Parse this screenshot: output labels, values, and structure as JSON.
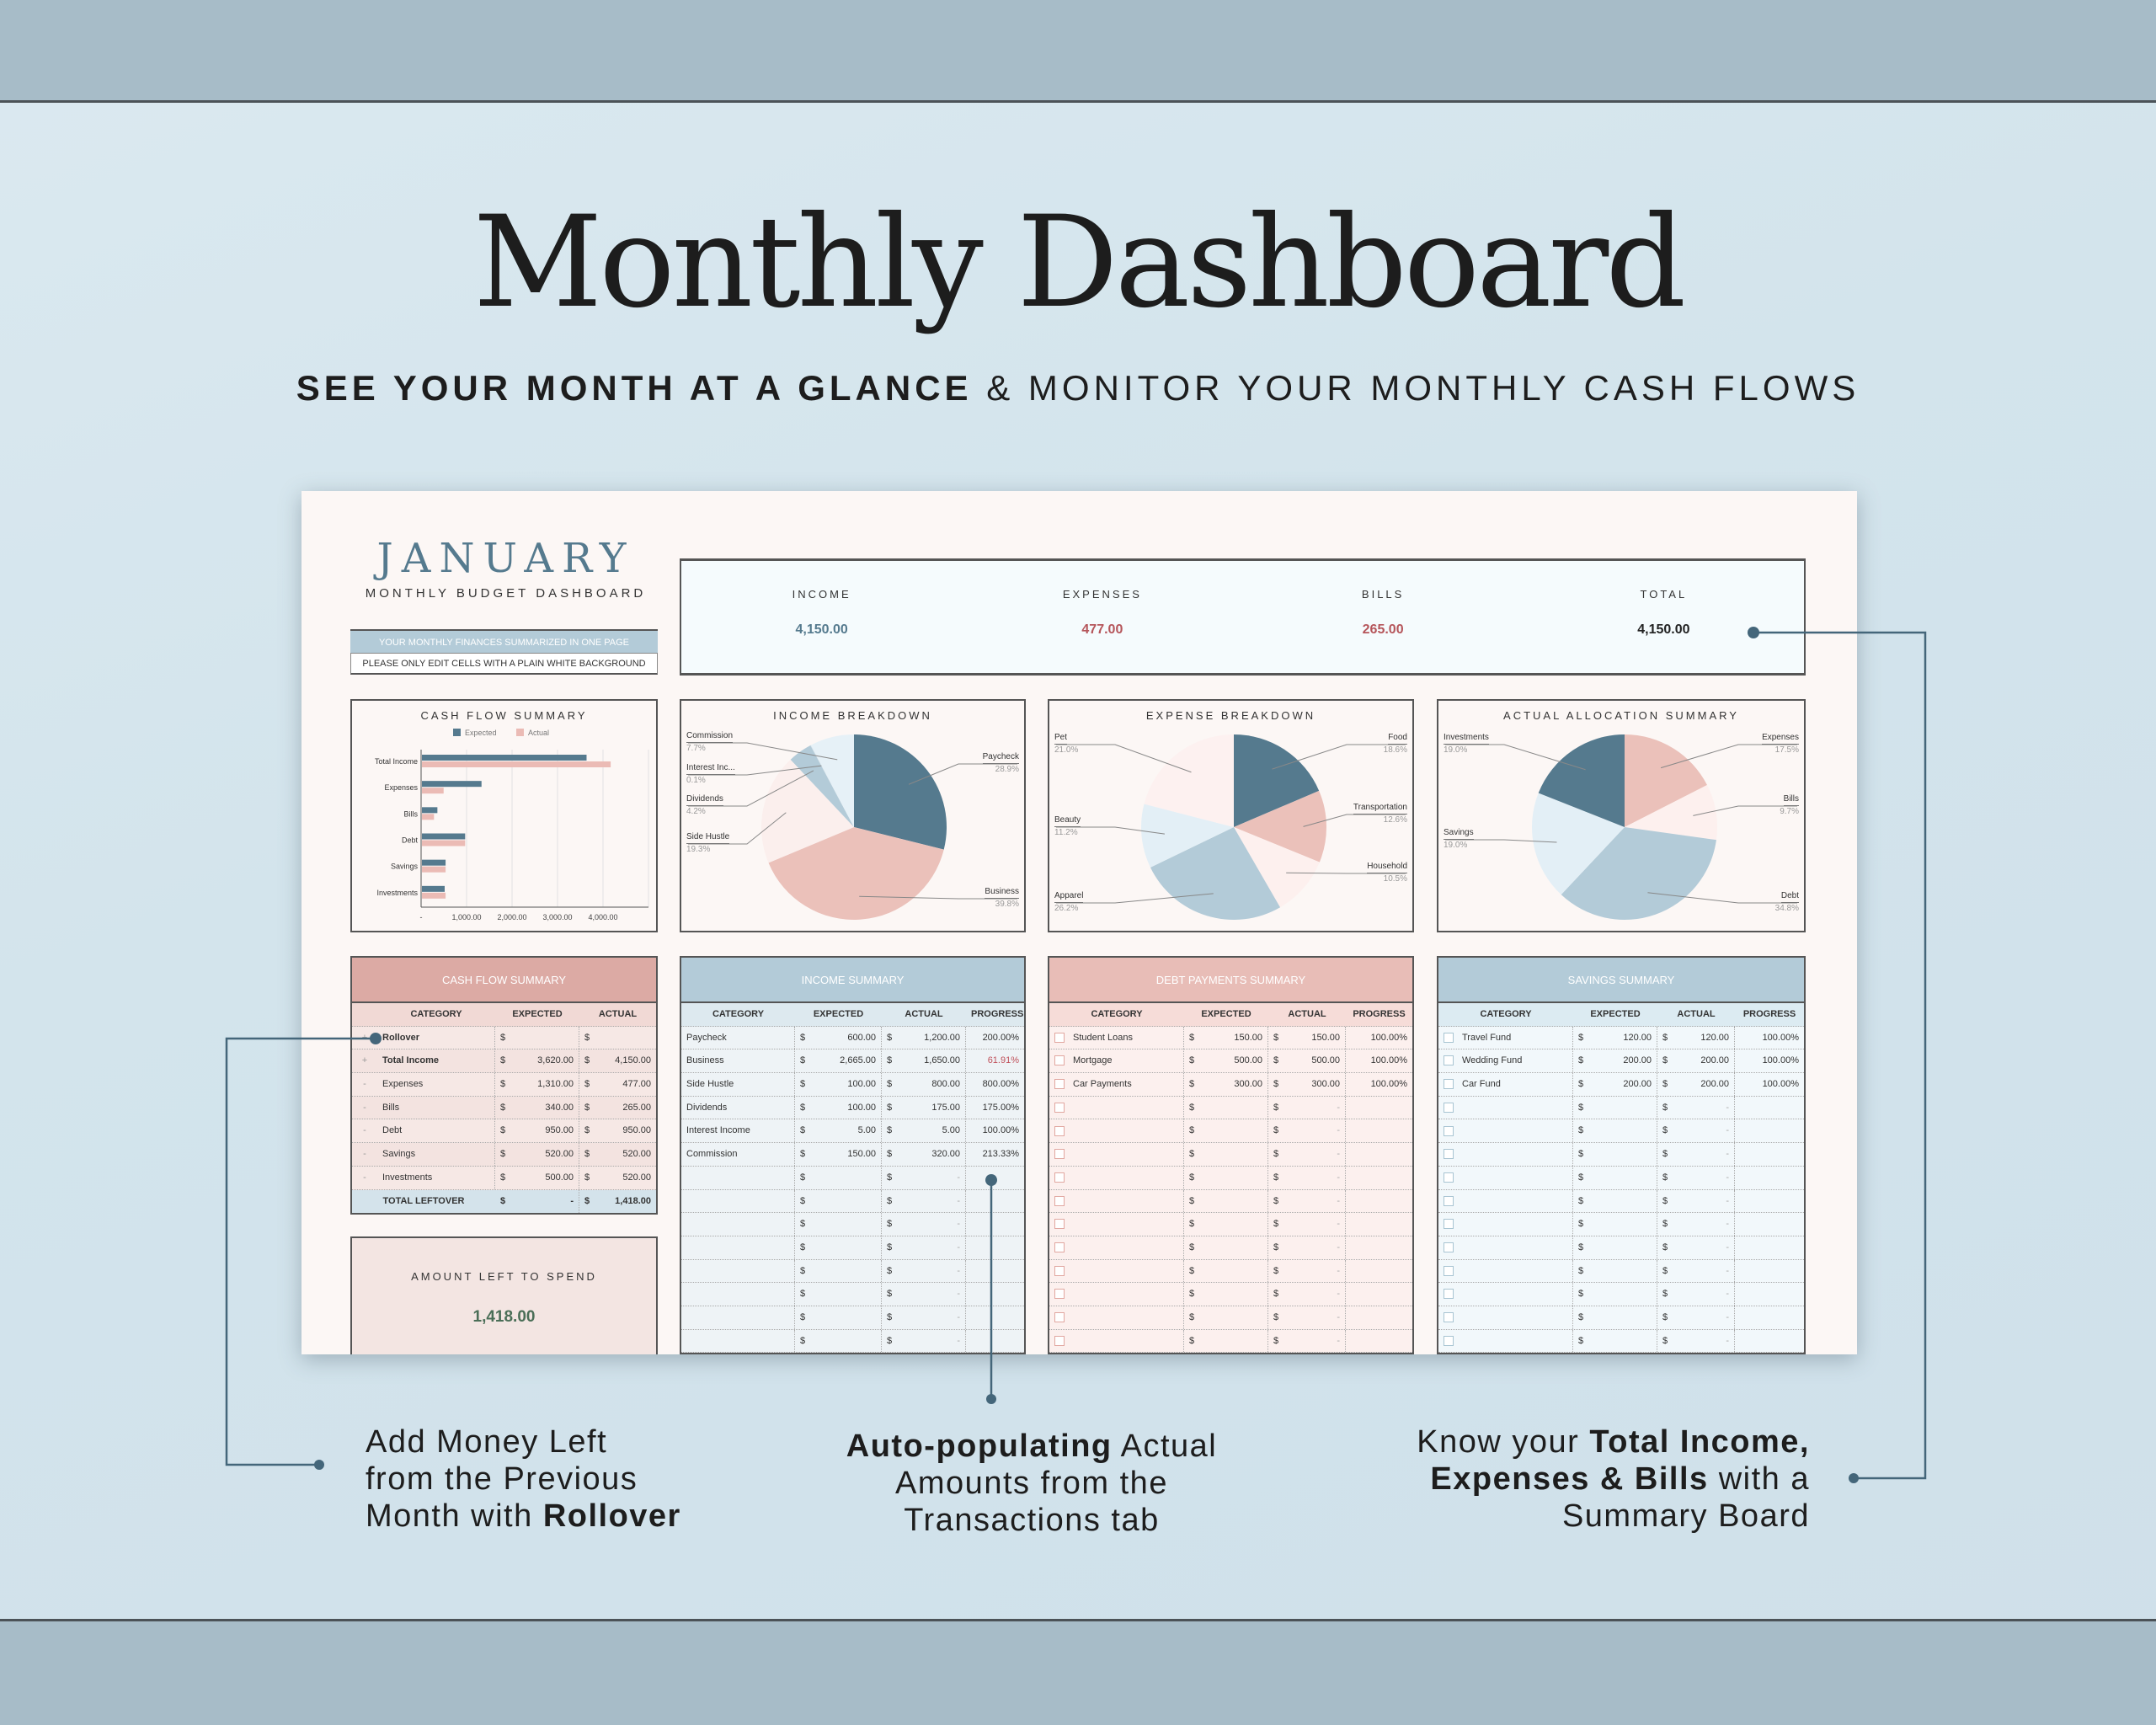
{
  "banner": {
    "title": "Monthly Dashboard",
    "subtitle_bold": "SEE YOUR MONTH AT A GLANCE",
    "subtitle_amp": " & ",
    "subtitle_rest": "MONITOR YOUR MONTHLY CASH FLOWS"
  },
  "sheet": {
    "month": "JANUARY",
    "subtitle": "MONTHLY BUDGET DASHBOARD",
    "note_1": "YOUR MONTHLY FINANCES SUMMARIZED IN ONE PAGE",
    "note_2": "PLEASE ONLY EDIT CELLS WITH A PLAIN WHITE BACKGROUND",
    "summary": [
      {
        "label": "INCOME",
        "value": "4,150.00",
        "color": "#557a8e"
      },
      {
        "label": "EXPENSES",
        "value": "477.00",
        "color": "#b5555a"
      },
      {
        "label": "BILLS",
        "value": "265.00",
        "color": "#b5555a"
      },
      {
        "label": "TOTAL",
        "value": "4,150.00",
        "color": "#222222"
      }
    ],
    "currency_symbol": "$",
    "empty_value": "-",
    "cash_flow_table": {
      "title": "CASH FLOW SUMMARY",
      "color": "#dcaaa4",
      "columns": [
        "CATEGORY",
        "EXPECTED",
        "ACTUAL"
      ],
      "rows": [
        {
          "sign": "+",
          "category": "Rollover",
          "expected": "",
          "actual": "",
          "bold": true
        },
        {
          "sign": "+",
          "category": "Total Income",
          "expected": "3,620.00",
          "actual": "4,150.00",
          "bold": true
        },
        {
          "sign": "-",
          "category": "Expenses",
          "expected": "1,310.00",
          "actual": "477.00"
        },
        {
          "sign": "-",
          "category": "Bills",
          "expected": "340.00",
          "actual": "265.00"
        },
        {
          "sign": "-",
          "category": "Debt",
          "expected": "950.00",
          "actual": "950.00"
        },
        {
          "sign": "-",
          "category": "Savings",
          "expected": "520.00",
          "actual": "520.00"
        },
        {
          "sign": "-",
          "category": "Investments",
          "expected": "500.00",
          "actual": "520.00"
        }
      ],
      "total": {
        "label": "TOTAL LEFTOVER",
        "expected": "-",
        "actual": "1,418.00"
      }
    },
    "income_table": {
      "title": "INCOME SUMMARY",
      "color": "#b3cbd8",
      "columns": [
        "CATEGORY",
        "EXPECTED",
        "ACTUAL",
        "PROGRESS"
      ],
      "checkbox": false,
      "empty_rows": 8,
      "rows": [
        {
          "category": "Paycheck",
          "expected": "600.00",
          "actual": "1,200.00",
          "progress": "200.00%"
        },
        {
          "category": "Business",
          "expected": "2,665.00",
          "actual": "1,650.00",
          "progress": "61.91%",
          "warn": true
        },
        {
          "category": "Side Hustle",
          "expected": "100.00",
          "actual": "800.00",
          "progress": "800.00%"
        },
        {
          "category": "Dividends",
          "expected": "100.00",
          "actual": "175.00",
          "progress": "175.00%"
        },
        {
          "category": "Interest Income",
          "expected": "5.00",
          "actual": "5.00",
          "progress": "100.00%"
        },
        {
          "category": "Commission",
          "expected": "150.00",
          "actual": "320.00",
          "progress": "213.33%"
        }
      ]
    },
    "debt_table": {
      "title": "DEBT PAYMENTS SUMMARY",
      "color": "#e8bdb7",
      "columns": [
        "CATEGORY",
        "EXPECTED",
        "ACTUAL",
        "PROGRESS"
      ],
      "checkbox": true,
      "empty_rows": 11,
      "rows": [
        {
          "category": "Student Loans",
          "expected": "150.00",
          "actual": "150.00",
          "progress": "100.00%"
        },
        {
          "category": "Mortgage",
          "expected": "500.00",
          "actual": "500.00",
          "progress": "100.00%"
        },
        {
          "category": "Car Payments",
          "expected": "300.00",
          "actual": "300.00",
          "progress": "100.00%"
        }
      ]
    },
    "savings_table": {
      "title": "SAVINGS SUMMARY",
      "color": "#b3cbd8",
      "columns": [
        "CATEGORY",
        "EXPECTED",
        "ACTUAL",
        "PROGRESS"
      ],
      "checkbox": true,
      "empty_rows": 11,
      "rows": [
        {
          "category": "Travel Fund",
          "expected": "120.00",
          "actual": "120.00",
          "progress": "100.00%"
        },
        {
          "category": "Wedding Fund",
          "expected": "200.00",
          "actual": "200.00",
          "progress": "100.00%"
        },
        {
          "category": "Car Fund",
          "expected": "200.00",
          "actual": "200.00",
          "progress": "100.00%"
        }
      ]
    },
    "amount_left": {
      "label": "AMOUNT LEFT TO SPEND",
      "value": "1,418.00"
    }
  },
  "chart_data": [
    {
      "type": "bar",
      "title": "CASH FLOW SUMMARY",
      "orientation": "horizontal",
      "categories": [
        "Total Income",
        "Expenses",
        "Bills",
        "Debt",
        "Savings",
        "Investments"
      ],
      "series": [
        {
          "name": "Expected",
          "color": "#557a8e",
          "values": [
            3620,
            1310,
            340,
            950,
            520,
            500
          ]
        },
        {
          "name": "Actual",
          "color": "#ebbbb5",
          "values": [
            4150,
            477,
            265,
            950,
            520,
            520
          ]
        }
      ],
      "xlim": [
        0,
        5000
      ],
      "xticks": [
        0,
        1000,
        2000,
        3000,
        4000
      ],
      "xtick_labels": [
        "-",
        "1,000.00",
        "2,000.00",
        "3,000.00",
        "4,000.00"
      ],
      "legend": "top",
      "grid": true
    },
    {
      "type": "pie",
      "title": "INCOME BREAKDOWN",
      "labels": [
        "Paycheck",
        "Business",
        "Side Hustle",
        "Dividends",
        "Interest Inc...",
        "Commission"
      ],
      "values": [
        28.9,
        39.8,
        19.3,
        4.2,
        0.1,
        7.7
      ],
      "pct_labels": [
        "28.9%",
        "39.8%",
        "19.3%",
        "4.2%",
        "0.1%",
        "7.7%"
      ],
      "colors": [
        "#557a8e",
        "#ebc1ba",
        "#fbefed",
        "#b3cbd8",
        "#cfe0ea",
        "#e6f1f7"
      ]
    },
    {
      "type": "pie",
      "title": "EXPENSE BREAKDOWN",
      "labels": [
        "Food",
        "Transportation",
        "Household",
        "Apparel",
        "Beauty",
        "Pet"
      ],
      "values": [
        18.6,
        12.6,
        10.5,
        26.2,
        11.2,
        21.0
      ],
      "pct_labels": [
        "18.6%",
        "12.6%",
        "10.5%",
        "26.2%",
        "11.2%",
        "21.0%"
      ],
      "colors": [
        "#557a8e",
        "#ebc1ba",
        "#fdf0ee",
        "#b3cbd8",
        "#e3eff6",
        "#fdf1f0"
      ]
    },
    {
      "type": "pie",
      "title": "ACTUAL ALLOCATION SUMMARY",
      "labels": [
        "Expenses",
        "Bills",
        "Debt",
        "Savings",
        "Investments"
      ],
      "values": [
        17.5,
        9.7,
        34.8,
        19.0,
        19.0
      ],
      "pct_labels": [
        "17.5%",
        "9.7%",
        "34.8%",
        "19.0%",
        "19.0%"
      ],
      "colors": [
        "#ebc1ba",
        "#fdf0ee",
        "#b3cbd8",
        "#e3eff6",
        "#557a8e"
      ]
    }
  ],
  "captions": {
    "left": {
      "line1": "Add Money Left",
      "line2": "from the Previous",
      "line3_pre": "Month with ",
      "line3_bold": "Rollover"
    },
    "middle": {
      "line1_bold": "Auto-populating",
      "line1_rest": " Actual",
      "line2": "Amounts from the",
      "line3": "Transactions tab"
    },
    "right": {
      "line1_pre": "Know your ",
      "line1_bold": "Total Income,",
      "line2_bold": "Expenses & Bills",
      "line2_rest": " with a",
      "line3": "Summary Board"
    }
  },
  "colors": {
    "accent_blue": "#557a8e",
    "accent_pink": "#dcaaa4",
    "background": "#d6e6ee"
  }
}
